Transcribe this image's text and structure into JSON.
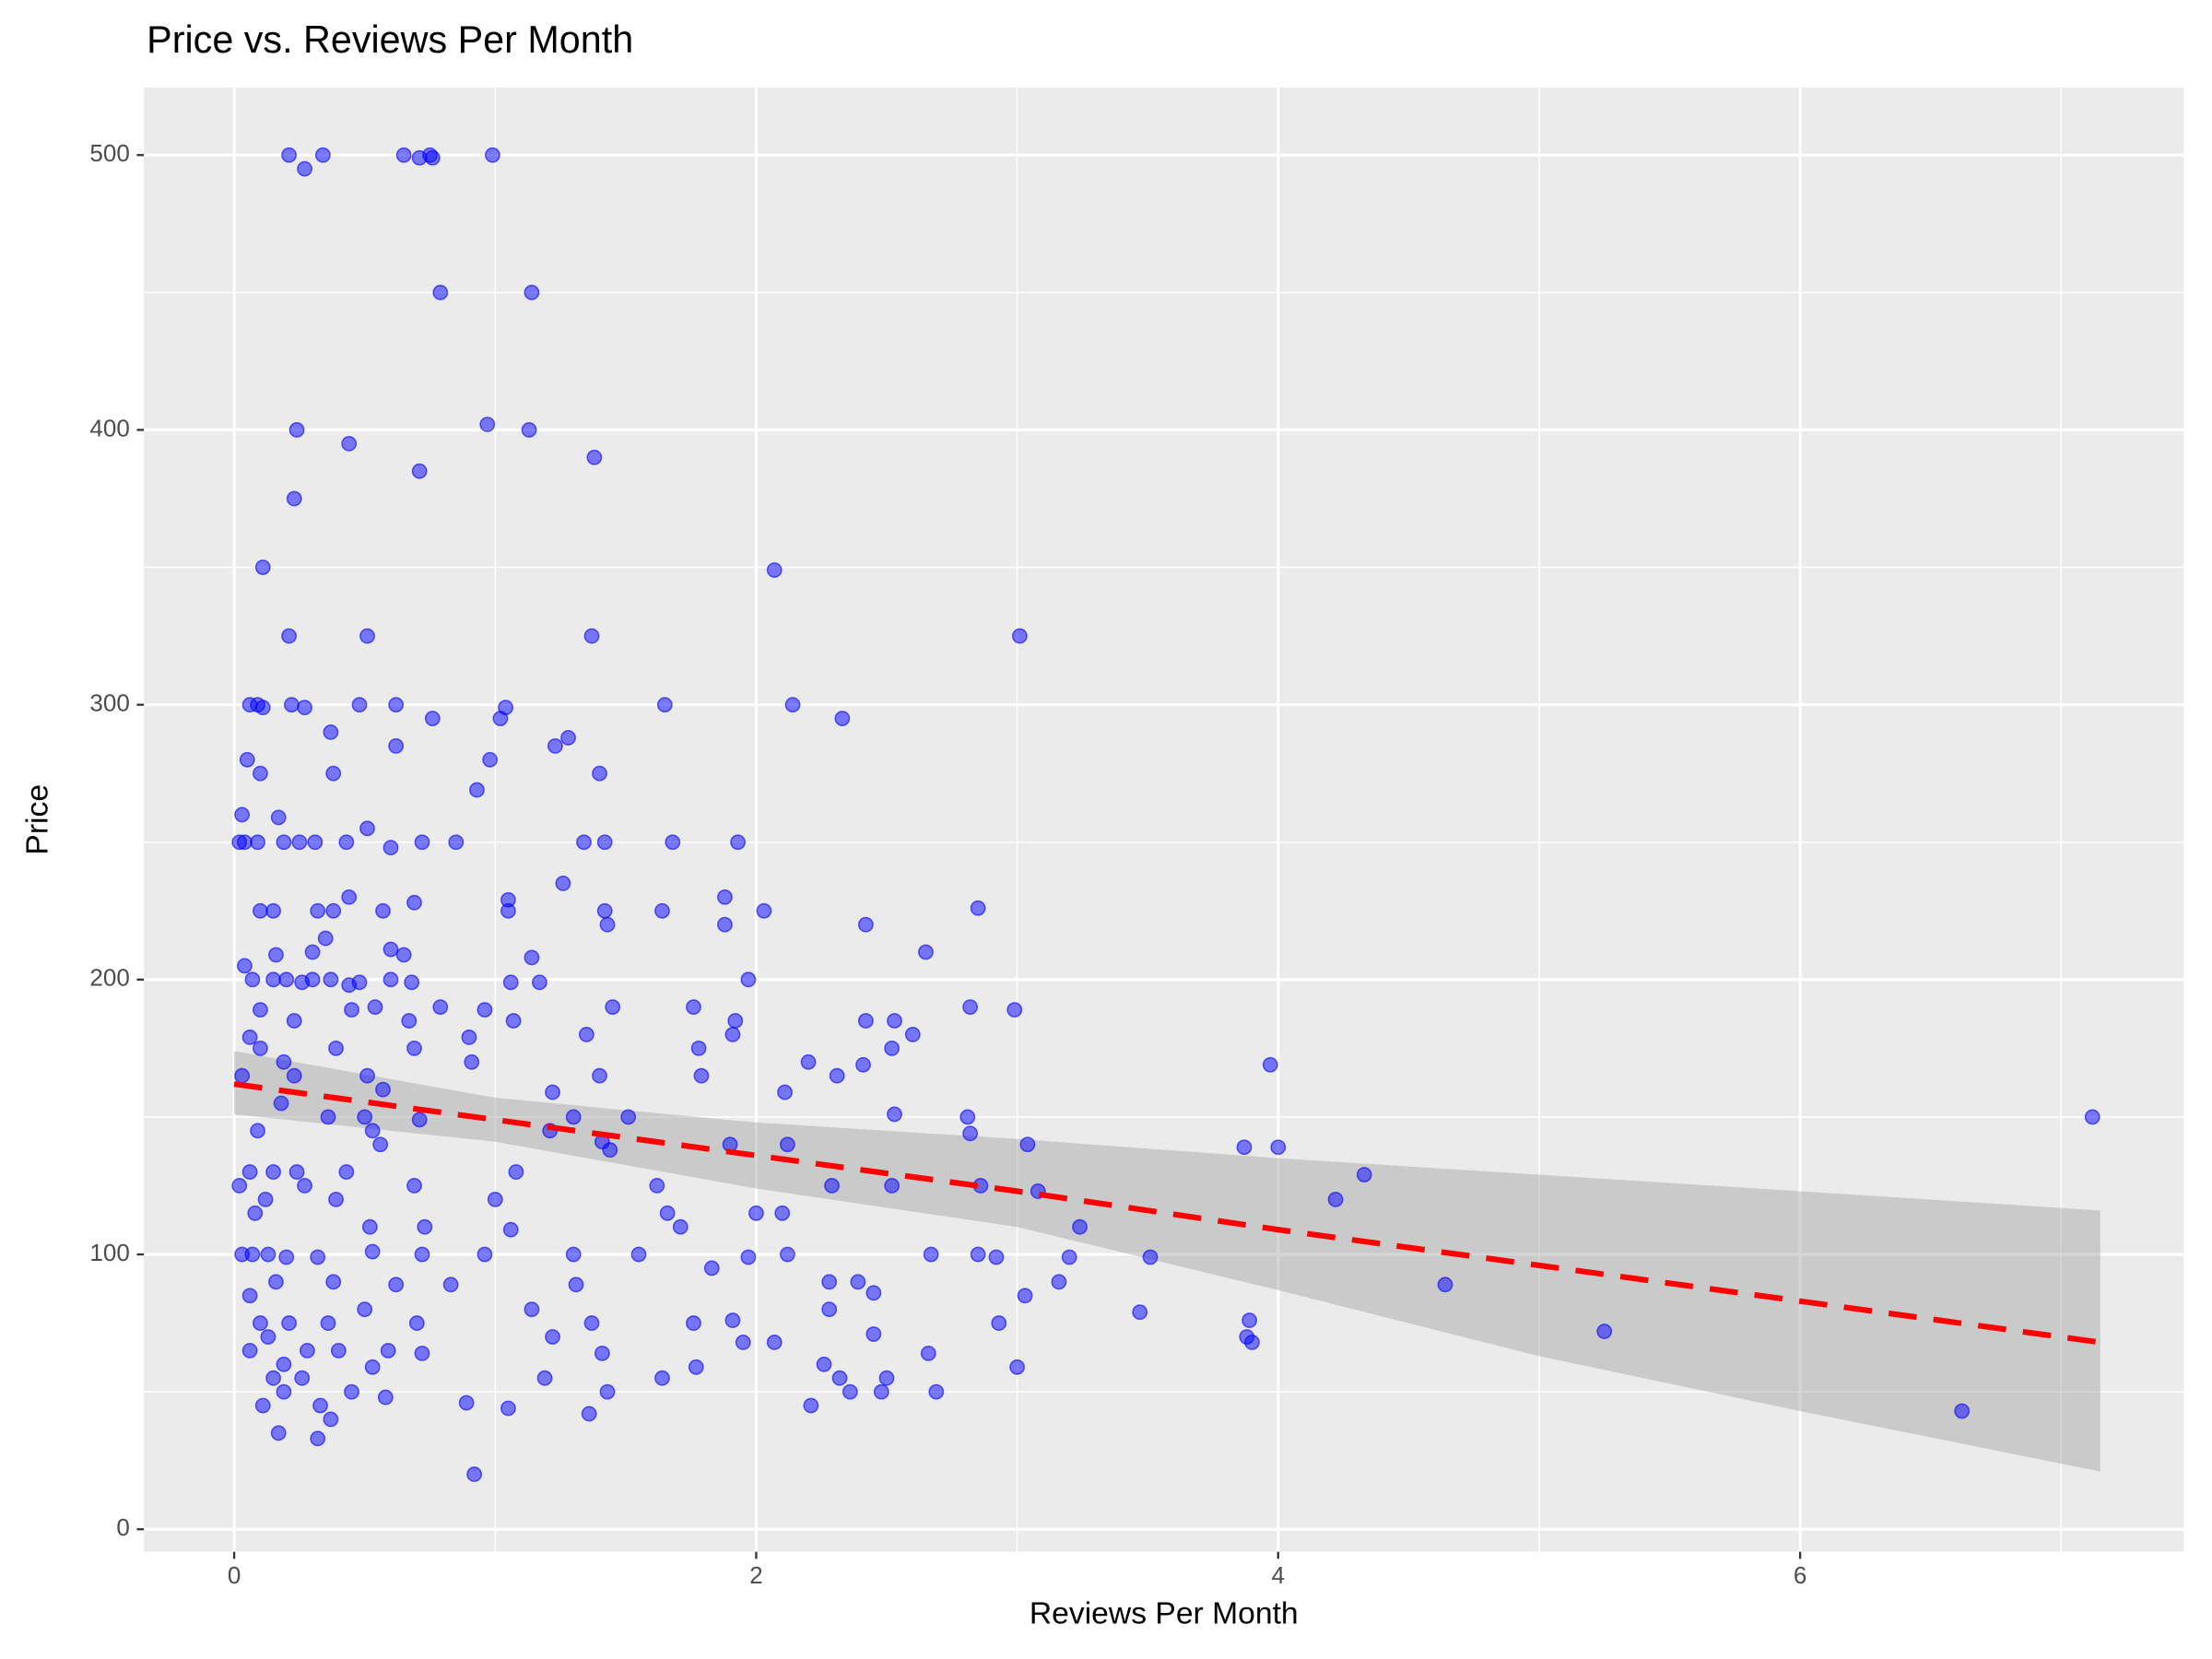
{
  "chart_data": {
    "type": "scatter",
    "title": "Price vs. Reviews Per Month",
    "x_label": "Reviews Per Month",
    "y_label": "Price",
    "xlim": [
      -0.346,
      7.47
    ],
    "ylim": [
      -8.2,
      524.6
    ],
    "xticks": [
      0,
      2,
      4,
      6
    ],
    "yticks": [
      0,
      100,
      200,
      300,
      400,
      500
    ],
    "grid": true,
    "series": [
      {
        "color": "#0000ff",
        "x": [
          0.21,
          0.27,
          0.34,
          0.65,
          0.71,
          0.75,
          0.76,
          0.99,
          0.79,
          1.14,
          0.97,
          0.24,
          1.13,
          0.44,
          1.38,
          0.71,
          0.23,
          2.07,
          0.11,
          0.21,
          0.51,
          1.37,
          3.01,
          0.06,
          0.09,
          0.11,
          0.22,
          0.27,
          0.48,
          0.62,
          1.04,
          1.65,
          2.14,
          1.02,
          0.76,
          2.33,
          0.37,
          1.28,
          0.62,
          1.23,
          0.05,
          0.98,
          0.1,
          0.38,
          1.4,
          0.93,
          0.03,
          0.17,
          0.51,
          0.02,
          0.04,
          0.09,
          0.19,
          0.25,
          0.31,
          0.43,
          0.6,
          0.72,
          0.85,
          1.34,
          1.42,
          1.68,
          1.93,
          1.26,
          0.44,
          1.05,
          1.88,
          0.1,
          0.15,
          0.32,
          0.38,
          0.57,
          0.69,
          1.05,
          1.42,
          1.64,
          2.03,
          2.85,
          1.43,
          1.88,
          2.42,
          0.35,
          0.6,
          0.3,
          0.16,
          0.65,
          1.14,
          2.65,
          0.04,
          0.07,
          0.15,
          0.2,
          0.26,
          0.3,
          0.37,
          0.44,
          0.48,
          0.6,
          0.68,
          1.06,
          1.17,
          1.97,
          0.1,
          0.45,
          0.54,
          0.79,
          0.96,
          1.45,
          1.76,
          2.82,
          2.99,
          0.23,
          0.67,
          1.07,
          1.92,
          2.42,
          2.53,
          0.06,
          0.9,
          1.35,
          1.91,
          2.6,
          0.1,
          0.39,
          0.69,
          1.78,
          2.52,
          0.19,
          0.91,
          2.2,
          2.41,
          3.97,
          0.03,
          0.23,
          0.51,
          1.4,
          1.79,
          2.31,
          0.57,
          1.22,
          2.11,
          0.18,
          0.5,
          0.36,
          0.71,
          1.3,
          1.51,
          2.53,
          2.81,
          7.12,
          0.53,
          1.21,
          2.82,
          0.09,
          1.41,
          0.56,
          1.9,
          2.12,
          3.04,
          3.87,
          4.0,
          0.02,
          0.06,
          0.15,
          0.24,
          0.43,
          0.69,
          1.08,
          1.44,
          1.62,
          2.29,
          2.52,
          2.86,
          4.33,
          3.08,
          0.12,
          0.27,
          0.39,
          1.0,
          1.66,
          2.0,
          2.1,
          4.22,
          0.08,
          0.52,
          0.73,
          1.06,
          1.71,
          3.24,
          0.03,
          0.07,
          0.13,
          0.2,
          0.32,
          0.53,
          0.72,
          0.96,
          1.3,
          1.55,
          1.83,
          1.97,
          2.12,
          2.67,
          2.85,
          2.92,
          3.2,
          3.51,
          0.16,
          0.38,
          0.62,
          0.83,
          1.31,
          2.28,
          2.39,
          3.16,
          4.64,
          2.45,
          0.06,
          0.5,
          1.14,
          1.91,
          2.28,
          2.93,
          3.03,
          3.47,
          3.89,
          0.1,
          0.21,
          0.36,
          0.7,
          1.37,
          1.76,
          2.45,
          0.13,
          0.59,
          1.22,
          1.95,
          2.07,
          3.88,
          3.9,
          5.25,
          0.06,
          0.28,
          0.4,
          0.72,
          1.41,
          2.26,
          3.0,
          2.66,
          0.19,
          0.53,
          1.77,
          0.15,
          0.26,
          1.19,
          1.64,
          2.32,
          2.5,
          0.19,
          0.45,
          0.58,
          1.43,
          2.36,
          2.48,
          2.69,
          0.11,
          0.33,
          0.89,
          1.05,
          1.36,
          2.21,
          6.62,
          0.37,
          0.17,
          0.32,
          0.92
        ],
        "values": [
          500,
          495,
          500,
          500,
          499,
          500,
          499,
          500,
          450,
          450,
          402,
          400,
          400,
          395,
          390,
          385,
          375,
          349,
          350,
          325,
          325,
          325,
          325,
          300,
          300,
          299,
          300,
          299,
          300,
          300,
          299,
          300,
          300,
          295,
          295,
          295,
          290,
          288,
          285,
          285,
          280,
          280,
          275,
          275,
          275,
          269,
          260,
          259,
          255,
          250,
          250,
          250,
          250,
          250,
          250,
          250,
          248,
          250,
          250,
          250,
          250,
          250,
          250,
          235,
          230,
          229,
          230,
          225,
          225,
          225,
          225,
          225,
          228,
          225,
          225,
          225,
          225,
          226,
          220,
          220,
          220,
          215,
          211,
          210,
          209,
          209,
          208,
          210,
          205,
          200,
          200,
          200,
          199,
          200,
          200,
          198,
          199,
          200,
          199,
          199,
          199,
          200,
          189,
          189,
          190,
          190,
          189,
          190,
          190,
          190,
          189,
          185,
          185,
          185,
          185,
          185,
          185,
          179,
          179,
          180,
          180,
          180,
          175,
          175,
          175,
          175,
          175,
          170,
          170,
          170,
          169,
          169,
          165,
          165,
          165,
          165,
          165,
          165,
          160,
          159,
          159,
          155,
          150,
          150,
          149,
          150,
          150,
          151,
          150,
          150,
          145,
          145,
          144,
          145,
          141,
          140,
          140,
          140,
          140,
          139,
          139,
          125,
          130,
          130,
          130,
          130,
          125,
          130,
          138,
          125,
          125,
          125,
          125,
          129,
          123,
          120,
          125,
          120,
          120,
          115,
          115,
          115,
          120,
          115,
          110,
          110,
          109,
          110,
          110,
          100,
          100,
          100,
          99,
          99,
          101,
          100,
          100,
          100,
          100,
          95,
          99,
          100,
          100,
          100,
          99,
          99,
          99,
          90,
          90,
          89,
          89,
          89,
          90,
          90,
          90,
          89,
          86,
          85,
          80,
          80,
          76,
          80,
          75,
          85,
          79,
          76,
          75,
          75,
          75,
          75,
          75,
          75,
          71,
          70,
          65,
          70,
          68,
          68,
          70,
          68,
          72,
          65,
          65,
          65,
          64,
          64,
          60,
          59,
          64,
          60,
          59,
          59,
          55,
          55,
          55,
          55,
          55,
          55,
          50,
          50,
          48,
          50,
          50,
          50,
          50,
          45,
          45,
          46,
          44,
          42,
          45,
          43,
          40,
          35,
          33,
          20
        ]
      }
    ],
    "trend": {
      "color": "#ff0000",
      "band_color": "#999999",
      "x": [
        0,
        1,
        2,
        3,
        4,
        5,
        6,
        7.15
      ],
      "values": [
        162,
        149,
        136,
        123,
        109,
        96,
        83,
        68
      ],
      "upper": [
        174,
        157,
        148,
        142,
        135,
        129,
        123,
        116
      ],
      "lower": [
        151,
        141,
        124,
        110,
        87,
        63,
        43,
        21
      ]
    }
  }
}
